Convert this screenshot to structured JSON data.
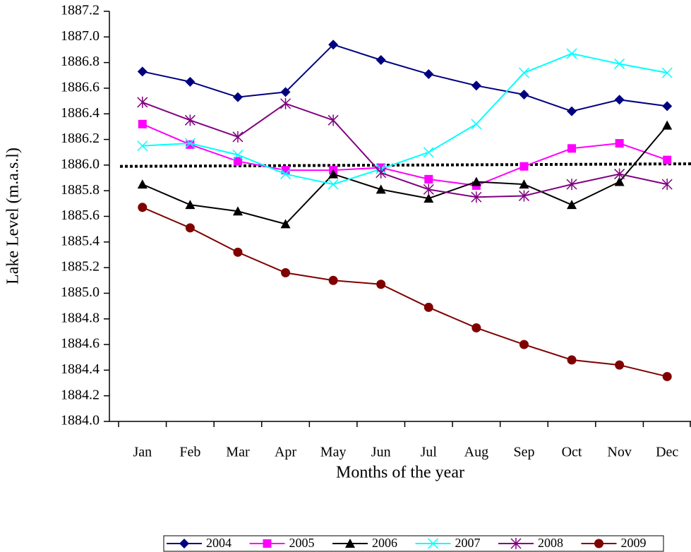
{
  "chart_data": {
    "type": "line",
    "y_label": "Lake Level (m.a.s.l)",
    "x_label": "Months of the year",
    "categories": [
      "Jan",
      "Feb",
      "Mar",
      "Apr",
      "May",
      "Jun",
      "Jul",
      "Aug",
      "Sep",
      "Oct",
      "Nov",
      "Dec"
    ],
    "series": [
      {
        "name": "2004",
        "color": "#000080",
        "marker": "diamond",
        "values": [
          1886.73,
          1886.65,
          1886.53,
          1886.57,
          1886.94,
          1886.82,
          1886.71,
          1886.62,
          1886.55,
          1886.42,
          1886.51,
          1886.46
        ]
      },
      {
        "name": "2005",
        "color": "#ff00ff",
        "marker": "square",
        "values": [
          1886.32,
          1886.16,
          1886.03,
          1885.96,
          1885.96,
          1885.98,
          1885.89,
          1885.84,
          1885.99,
          1886.13,
          1886.17,
          1886.04
        ]
      },
      {
        "name": "2006",
        "color": "#000000",
        "marker": "triangle",
        "values": [
          1885.85,
          1885.69,
          1885.64,
          1885.54,
          1885.93,
          1885.81,
          1885.74,
          1885.87,
          1885.85,
          1885.69,
          1885.87,
          1886.31
        ]
      },
      {
        "name": "2007",
        "color": "#00ffff",
        "marker": "x",
        "values": [
          1886.15,
          1886.17,
          1886.08,
          1885.93,
          1885.85,
          1885.97,
          1886.1,
          1886.32,
          1886.72,
          1886.87,
          1886.79,
          1886.72
        ]
      },
      {
        "name": "2008",
        "color": "#800080",
        "marker": "asterisk",
        "values": [
          1886.49,
          1886.35,
          1886.22,
          1886.48,
          1886.35,
          1885.94,
          1885.81,
          1885.75,
          1885.76,
          1885.85,
          1885.93,
          1885.85
        ]
      },
      {
        "name": "2009",
        "color": "#800000",
        "marker": "circle",
        "values": [
          1885.67,
          1885.51,
          1885.32,
          1885.16,
          1885.1,
          1885.07,
          1884.89,
          1884.73,
          1884.6,
          1884.48,
          1884.44,
          1884.35
        ]
      }
    ],
    "reference_line": [
      1885.99,
      1886.01
    ],
    "ylim": [
      1884,
      1887.2
    ],
    "yticks": [
      {
        "value": 1884,
        "label": "1884.0"
      },
      1884.2,
      1884.4,
      1884.6,
      1884.8,
      {
        "value": 1885,
        "label": "1885.0"
      },
      1885.2,
      1885.4,
      1885.6,
      1885.8,
      {
        "value": 1886,
        "label": "1886.0"
      },
      1886.2,
      1886.4,
      1886.6,
      1886.8,
      {
        "value": 1887,
        "label": "1887.0"
      },
      1887.2
    ],
    "grid": false,
    "legend": "bottom"
  }
}
